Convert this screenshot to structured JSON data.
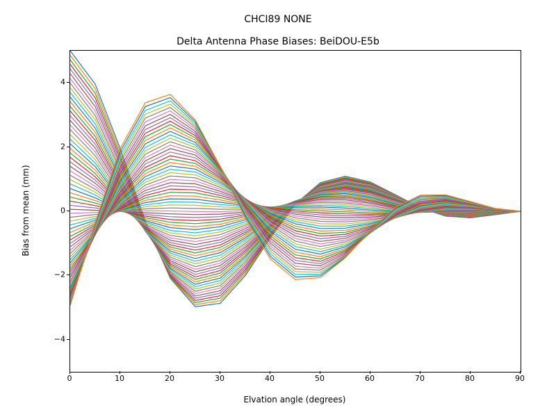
{
  "suptitle": "CHCI89            NONE",
  "chart": {
    "type": "line",
    "title": "Delta Antenna Phase Biases: BeiDOU-E5b",
    "xlabel": "Elvation angle (degrees)",
    "ylabel": "Bias from mean (mm)",
    "xlim": [
      0,
      90
    ],
    "ylim": [
      -5,
      5
    ],
    "xticks": [
      0,
      10,
      20,
      30,
      40,
      50,
      60,
      70,
      80,
      90
    ],
    "yticks": [
      -4,
      -2,
      0,
      2,
      4
    ],
    "background_color": "#ffffff",
    "axis_color": "#000000",
    "title_fontsize": 14,
    "label_fontsize": 12,
    "tick_fontsize": 11,
    "line_width": 1.2,
    "x_values": [
      0,
      5,
      10,
      15,
      20,
      25,
      30,
      35,
      40,
      45,
      50,
      55,
      60,
      65,
      70,
      75,
      80,
      85,
      90
    ],
    "colors": [
      "#1f77b4",
      "#ff7f0e",
      "#2ca02c",
      "#d62728",
      "#9467bd",
      "#8c564b",
      "#e377c2",
      "#7f7f7f",
      "#bcbd22",
      "#17becf",
      "#1f77b4",
      "#ff7f0e",
      "#2ca02c",
      "#d62728",
      "#9467bd",
      "#8c564b",
      "#e377c2",
      "#7f7f7f",
      "#bcbd22",
      "#17becf",
      "#1f77b4",
      "#ff7f0e",
      "#2ca02c",
      "#d62728",
      "#9467bd",
      "#8c564b",
      "#e377c2",
      "#7f7f7f",
      "#bcbd22",
      "#17becf",
      "#1f77b4",
      "#ff7f0e",
      "#2ca02c",
      "#d62728",
      "#9467bd",
      "#8c564b",
      "#e377c2",
      "#7f7f7f",
      "#bcbd22",
      "#17becf",
      "#1f77b4",
      "#ff7f0e",
      "#2ca02c",
      "#d62728",
      "#9467bd",
      "#8c564b",
      "#e377c2",
      "#7f7f7f",
      "#bcbd22",
      "#17becf",
      "#1f77b4",
      "#ff7f0e",
      "#2ca02c",
      "#d62728",
      "#9467bd",
      "#8c564b",
      "#e377c2",
      "#7f7f7f",
      "#bcbd22",
      "#17becf",
      "#1f77b4",
      "#ff7f0e",
      "#2ca02c",
      "#d62728",
      "#9467bd",
      "#8c564b",
      "#e377c2",
      "#7f7f7f",
      "#bcbd22",
      "#17becf",
      "#1f77b4",
      "#ff7f0e"
    ],
    "series_params": [
      {
        "a": 5.0,
        "p": 0.0
      },
      {
        "a": 4.86,
        "p": 0.088
      },
      {
        "a": 4.72,
        "p": 0.177
      },
      {
        "a": 4.58,
        "p": 0.265
      },
      {
        "a": 4.44,
        "p": 0.354
      },
      {
        "a": 4.3,
        "p": 0.442
      },
      {
        "a": 4.15,
        "p": 0.531
      },
      {
        "a": 4.01,
        "p": 0.619
      },
      {
        "a": 3.87,
        "p": 0.708
      },
      {
        "a": 3.73,
        "p": 0.796
      },
      {
        "a": 3.59,
        "p": 0.885
      },
      {
        "a": 3.45,
        "p": 0.973
      },
      {
        "a": 3.31,
        "p": 1.062
      },
      {
        "a": 3.17,
        "p": 1.15
      },
      {
        "a": 3.03,
        "p": 1.239
      },
      {
        "a": 2.89,
        "p": 1.327
      },
      {
        "a": 2.75,
        "p": 1.416
      },
      {
        "a": 2.61,
        "p": 1.504
      },
      {
        "a": 2.46,
        "p": 1.593
      },
      {
        "a": 2.32,
        "p": 1.681
      },
      {
        "a": 2.18,
        "p": 1.77
      },
      {
        "a": 2.04,
        "p": 1.858
      },
      {
        "a": 1.9,
        "p": 1.947
      },
      {
        "a": 1.76,
        "p": 2.035
      },
      {
        "a": 1.62,
        "p": 2.124
      },
      {
        "a": 1.48,
        "p": 2.212
      },
      {
        "a": 1.34,
        "p": 2.301
      },
      {
        "a": 1.2,
        "p": 2.389
      },
      {
        "a": 1.06,
        "p": 2.478
      },
      {
        "a": 0.92,
        "p": 2.566
      },
      {
        "a": 0.77,
        "p": 2.655
      },
      {
        "a": 0.63,
        "p": 2.743
      },
      {
        "a": 0.49,
        "p": 2.832
      },
      {
        "a": 0.35,
        "p": 2.92
      },
      {
        "a": 0.21,
        "p": 3.009
      },
      {
        "a": 0.07,
        "p": 3.097
      },
      {
        "a": -0.07,
        "p": 3.186
      },
      {
        "a": -0.21,
        "p": 3.274
      },
      {
        "a": -0.35,
        "p": 3.363
      },
      {
        "a": -0.49,
        "p": 3.451
      },
      {
        "a": -0.63,
        "p": 3.54
      },
      {
        "a": -0.77,
        "p": 3.628
      },
      {
        "a": -0.92,
        "p": 3.717
      },
      {
        "a": -1.06,
        "p": 3.805
      },
      {
        "a": -1.2,
        "p": 3.894
      },
      {
        "a": -1.34,
        "p": 3.982
      },
      {
        "a": -1.48,
        "p": 4.071
      },
      {
        "a": -1.62,
        "p": 4.159
      },
      {
        "a": -1.76,
        "p": 4.248
      },
      {
        "a": -1.9,
        "p": 4.336
      },
      {
        "a": -2.04,
        "p": 4.425
      },
      {
        "a": -2.18,
        "p": 4.513
      },
      {
        "a": -2.32,
        "p": 4.602
      },
      {
        "a": -2.46,
        "p": 4.69
      },
      {
        "a": -2.61,
        "p": 4.779
      },
      {
        "a": -2.75,
        "p": 4.867
      },
      {
        "a": -2.89,
        "p": 4.956
      },
      {
        "a": -3.03,
        "p": 5.044
      },
      {
        "a": -3.17,
        "p": 5.133
      },
      {
        "a": -3.31,
        "p": 5.221
      },
      {
        "a": -3.45,
        "p": 5.31
      },
      {
        "a": -3.59,
        "p": 5.398
      },
      {
        "a": -3.73,
        "p": 5.487
      },
      {
        "a": -3.87,
        "p": 5.575
      },
      {
        "a": -4.01,
        "p": 5.664
      },
      {
        "a": -4.15,
        "p": 5.752
      },
      {
        "a": -4.3,
        "p": 5.841
      },
      {
        "a": -4.44,
        "p": 5.929
      },
      {
        "a": -4.58,
        "p": 6.018
      },
      {
        "a": -4.72,
        "p": 6.106
      },
      {
        "a": -4.86,
        "p": 6.195
      },
      {
        "a": -5.0,
        "p": 6.283
      }
    ]
  }
}
